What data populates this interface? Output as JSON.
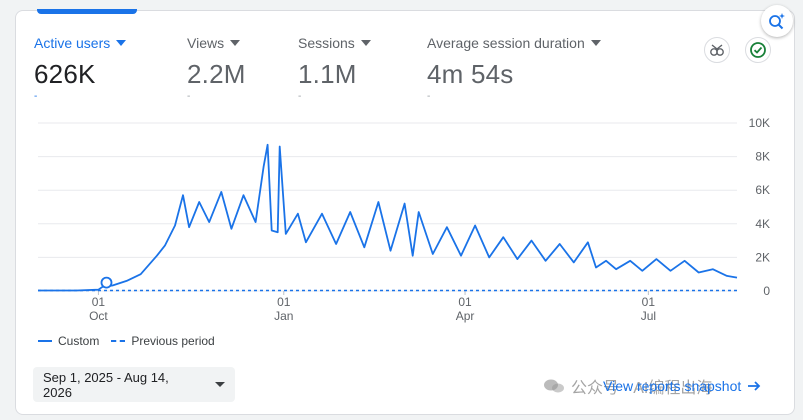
{
  "metrics": [
    {
      "label": "Active users",
      "value": "626K",
      "dash": "-",
      "active": true
    },
    {
      "label": "Views",
      "value": "2.2M",
      "dash": "-",
      "active": false
    },
    {
      "label": "Sessions",
      "value": "1.1M",
      "dash": "-",
      "active": false
    },
    {
      "label": "Average session duration",
      "value": "4m 54s",
      "dash": "-",
      "active": false
    }
  ],
  "icons": {
    "insights": "sparkle-search-icon",
    "comparison": "compare-icon",
    "status": "check-circle-icon"
  },
  "colors": {
    "accent": "#1a73e8",
    "status_green": "#188038",
    "text_primary": "#202124",
    "text_secondary": "#5f6368"
  },
  "chart_data": {
    "type": "line",
    "yticks": [
      "10K",
      "8K",
      "6K",
      "4K",
      "2K",
      "0"
    ],
    "ylim": [
      0,
      10000
    ],
    "x_range": [
      "2025-09-01",
      "2026-08-14"
    ],
    "xticks": [
      {
        "top": "01",
        "bottom": "Oct",
        "date": "2025-10-01"
      },
      {
        "top": "01",
        "bottom": "Jan",
        "date": "2026-01-01"
      },
      {
        "top": "01",
        "bottom": "Apr",
        "date": "2026-04-01"
      },
      {
        "top": "01",
        "bottom": "Jul",
        "date": "2026-07-01"
      }
    ],
    "series": [
      {
        "name": "Custom",
        "style": "solid"
      },
      {
        "name": "Previous period",
        "style": "dashed"
      }
    ],
    "custom_keypoints": [
      [
        "2025-09-01",
        30
      ],
      [
        "2025-09-20",
        30
      ],
      [
        "2025-10-01",
        80
      ],
      [
        "2025-10-03",
        250
      ],
      [
        "2025-10-08",
        330
      ],
      [
        "2025-10-15",
        600
      ],
      [
        "2025-10-22",
        1000
      ],
      [
        "2025-10-30",
        2100
      ],
      [
        "2025-11-03",
        2700
      ],
      [
        "2025-11-08",
        3900
      ],
      [
        "2025-11-12",
        5700
      ],
      [
        "2025-11-15",
        3800
      ],
      [
        "2025-11-20",
        5300
      ],
      [
        "2025-11-25",
        4100
      ],
      [
        "2025-12-01",
        5900
      ],
      [
        "2025-12-06",
        3700
      ],
      [
        "2025-12-12",
        5700
      ],
      [
        "2025-12-18",
        4100
      ],
      [
        "2025-12-22",
        7400
      ],
      [
        "2025-12-24",
        8700
      ],
      [
        "2025-12-26",
        3600
      ],
      [
        "2025-12-29",
        3500
      ],
      [
        "2025-12-30",
        8600
      ],
      [
        "2026-01-02",
        3400
      ],
      [
        "2026-01-08",
        4600
      ],
      [
        "2026-01-12",
        2900
      ],
      [
        "2026-01-20",
        4600
      ],
      [
        "2026-01-27",
        2800
      ],
      [
        "2026-02-03",
        4700
      ],
      [
        "2026-02-10",
        2600
      ],
      [
        "2026-02-17",
        5300
      ],
      [
        "2026-02-23",
        2400
      ],
      [
        "2026-03-02",
        5200
      ],
      [
        "2026-03-06",
        2100
      ],
      [
        "2026-03-09",
        4700
      ],
      [
        "2026-03-16",
        2200
      ],
      [
        "2026-03-23",
        3800
      ],
      [
        "2026-03-30",
        2100
      ],
      [
        "2026-04-06",
        3900
      ],
      [
        "2026-04-13",
        2000
      ],
      [
        "2026-04-20",
        3200
      ],
      [
        "2026-04-27",
        1900
      ],
      [
        "2026-05-04",
        3000
      ],
      [
        "2026-05-11",
        1800
      ],
      [
        "2026-05-18",
        2800
      ],
      [
        "2026-05-25",
        1700
      ],
      [
        "2026-06-01",
        2900
      ],
      [
        "2026-06-05",
        1400
      ],
      [
        "2026-06-10",
        1800
      ],
      [
        "2026-06-15",
        1300
      ],
      [
        "2026-06-22",
        1800
      ],
      [
        "2026-06-28",
        1200
      ],
      [
        "2026-07-05",
        1900
      ],
      [
        "2026-07-12",
        1200
      ],
      [
        "2026-07-19",
        1800
      ],
      [
        "2026-07-26",
        1100
      ],
      [
        "2026-08-02",
        1300
      ],
      [
        "2026-08-09",
        900
      ],
      [
        "2026-08-14",
        800
      ]
    ],
    "marker": {
      "date": "2025-10-05",
      "value": 500
    }
  },
  "legend": {
    "custom": "Custom",
    "previous": "Previous period"
  },
  "date_range": {
    "label": "Sep 1, 2025 - Aug 14, 2026"
  },
  "view_link": {
    "label": "View reports snapshot"
  },
  "watermark": {
    "text": "公众号 · AI编程出海"
  }
}
